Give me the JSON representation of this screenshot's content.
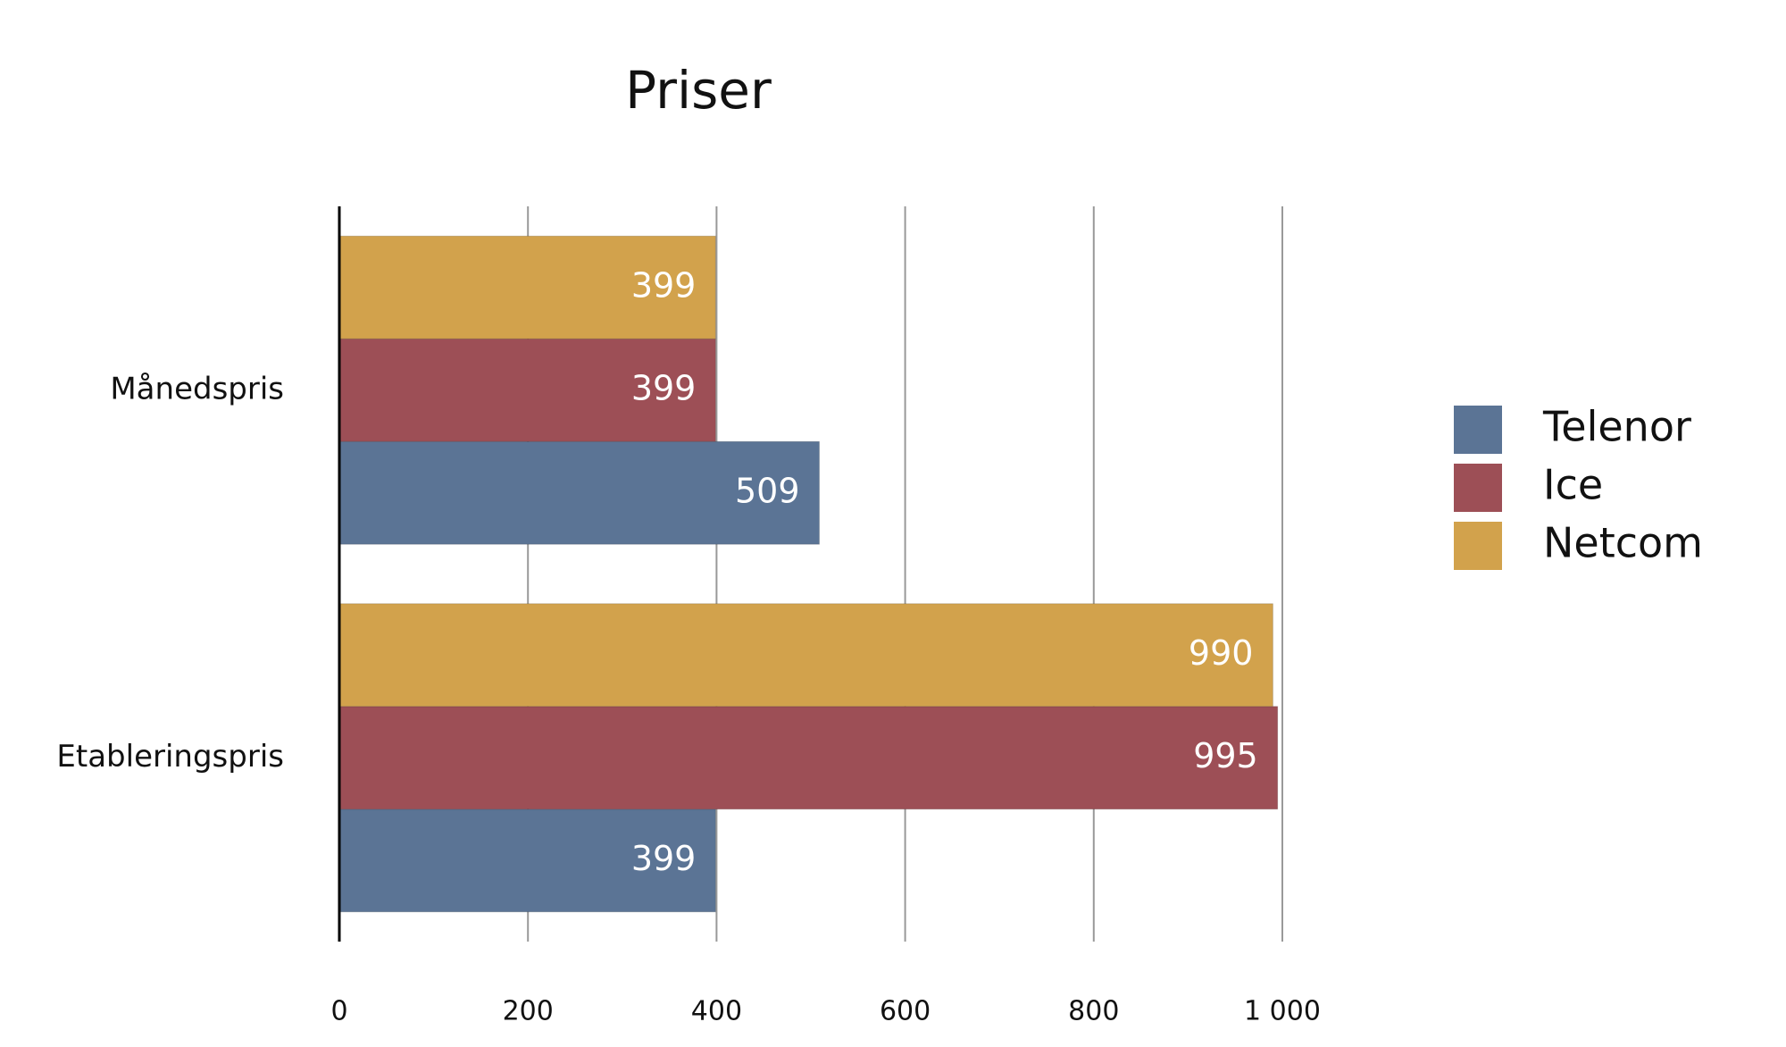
{
  "chart_data": {
    "type": "hbar",
    "title": "Priser",
    "categories": [
      "Månedspris",
      "Etableringspris"
    ],
    "series": [
      {
        "name": "Telenor",
        "color": "#5b7495",
        "values": [
          509,
          399
        ]
      },
      {
        "name": "Ice",
        "color": "#9d4f56",
        "values": [
          399,
          995
        ]
      },
      {
        "name": "Netcom",
        "color": "#d2a24c",
        "values": [
          399,
          990
        ]
      }
    ],
    "xlim": [
      0,
      1000
    ],
    "xticks": [
      0,
      200,
      400,
      600,
      800,
      {
        "value": 1000,
        "label": "1 000"
      }
    ],
    "grid": true,
    "legend": "right"
  }
}
